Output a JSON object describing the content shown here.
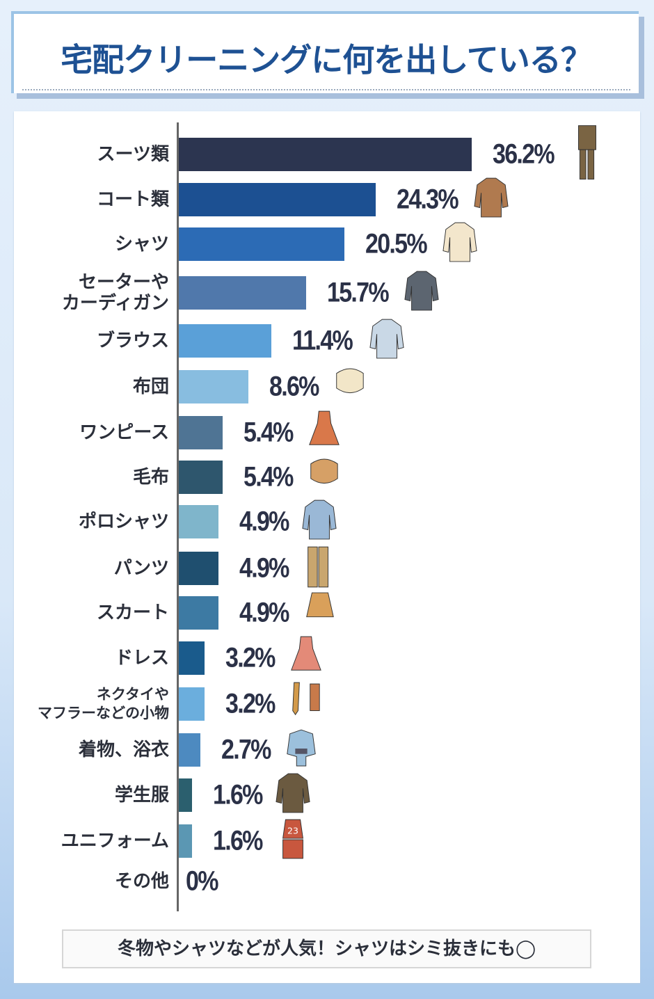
{
  "title": "宅配クリーニングに何を出している？",
  "note": "冬物やシャツなどが人気！シャツはシミ抜きにも◯",
  "chart_data": {
    "type": "bar",
    "orientation": "horizontal",
    "title": "宅配クリーニングに何を出している？",
    "unit": "%",
    "categories": [
      "スーツ類",
      "コート類",
      "シャツ",
      "セーターや\nカーディガン",
      "ブラウス",
      "布団",
      "ワンピース",
      "毛布",
      "ポロシャツ",
      "パンツ",
      "スカート",
      "ドレス",
      "ネクタイや\nマフラーなどの小物",
      "着物、浴衣",
      "学生服",
      "ユニフォーム",
      "その他"
    ],
    "values": [
      36.2,
      24.3,
      20.5,
      15.7,
      11.4,
      8.6,
      5.4,
      5.4,
      4.9,
      4.9,
      4.9,
      3.2,
      3.2,
      2.7,
      1.6,
      1.6,
      0
    ],
    "labels": [
      "36.2%",
      "24.3%",
      "20.5%",
      "15.7%",
      "11.4%",
      "8.6%",
      "5.4%",
      "5.4%",
      "4.9%",
      "4.9%",
      "4.9%",
      "3.2%",
      "3.2%",
      "2.7%",
      "1.6%",
      "1.6%",
      "0%"
    ],
    "colors": [
      "#2c3550",
      "#1c5092",
      "#2c6bb5",
      "#5078ab",
      "#5aa0d8",
      "#88bde0",
      "#4f7494",
      "#2e566d",
      "#7fb5cb",
      "#1f4f6f",
      "#3d7aa3",
      "#1a5b8c",
      "#6baedd",
      "#4d8ac0",
      "#2b5f6e",
      "#5b97b3",
      "#5b97b3"
    ],
    "icons": [
      "suit-icon",
      "coat-icon",
      "shirt-icon",
      "sweater-icon",
      "blouse-icon",
      "futon-icon",
      "dress-icon",
      "blanket-icon",
      "polo-shirt-icon",
      "pants-icon",
      "skirt-icon",
      "party-dress-icon",
      "tie-scarf-icon",
      "kimono-icon",
      "school-uniform-icon",
      "uniform-icon",
      ""
    ],
    "icon_colors": [
      "#7a6443",
      "#b07a4f",
      "#f3e6cc",
      "#5c6570",
      "#c9d8e6",
      "#f2e6c8",
      "#d9784a",
      "#d6a066",
      "#9ab8d6",
      "#c9a66e",
      "#d9a05a",
      "#e38a78",
      "#d39a4a",
      "#9cc0dc",
      "#6b5a40",
      "#c8573e",
      ""
    ],
    "uniform_number": "23",
    "xlim": [
      0,
      36.2
    ],
    "grid": false
  }
}
